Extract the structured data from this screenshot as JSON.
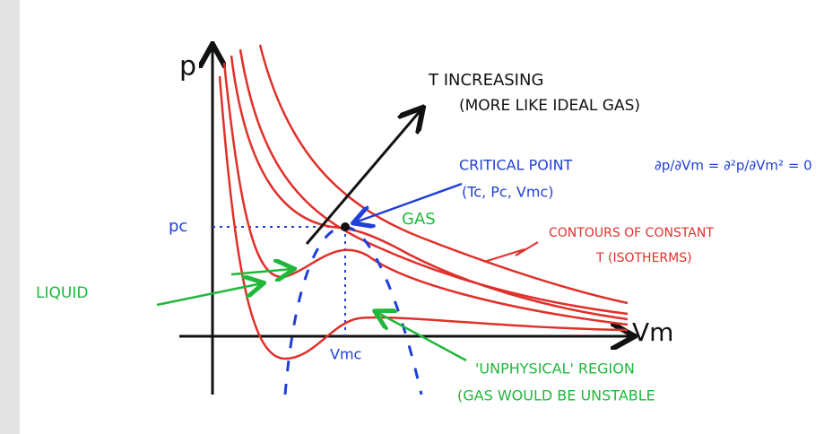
{
  "axes": {
    "y_label": "p",
    "x_label": "Vm",
    "pc_label": "pc",
    "vmc_label": "Vmc"
  },
  "annotations": {
    "t_increasing": "T INCREASING",
    "ideal_gas": "(MORE LIKE IDEAL GAS)",
    "critical_point": "CRITICAL POINT",
    "critical_coords": "(Tc, Pc, Vmc)",
    "critical_condition": "∂p/∂Vm = ∂²p/∂Vm² = 0",
    "gas": "GAS",
    "contours": "CONTOURS OF CONSTANT",
    "isotherms": "T (ISOTHERMS)",
    "liquid": "LIQUID",
    "unphysical": "'UNPHYSICAL' REGION",
    "unstable": "(GAS WOULD BE UNSTABLE"
  }
}
